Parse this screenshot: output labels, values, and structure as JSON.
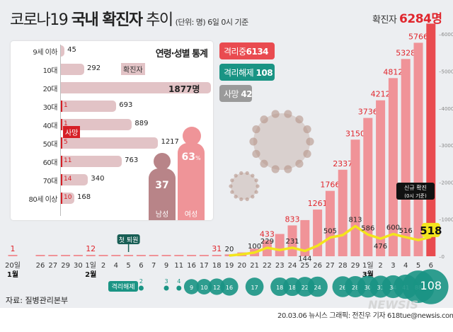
{
  "header": {
    "title_prefix": "코로나19",
    "title_main": "국내 확진자",
    "title_suffix": "추이",
    "unit_note": "(단위: 명) 6일 0시 기준",
    "total_label": "확진자",
    "total_value": "6284명"
  },
  "status": {
    "isolated": {
      "label": "격리중",
      "value": "6134",
      "color": "#e94b50"
    },
    "released": {
      "label": "격리해제",
      "value": "108",
      "color": "#1a9484"
    },
    "deaths": {
      "label": "사망",
      "value": "42",
      "color": "#9a9a9a"
    }
  },
  "age_panel": {
    "title": "연령·성별 통계",
    "confirmed_tag": "확진자",
    "death_tag": "사망",
    "rows": [
      {
        "label": "9세 이하",
        "confirmed": 45,
        "confirmed_label": "45",
        "deaths": null
      },
      {
        "label": "10대",
        "confirmed": 292,
        "confirmed_label": "292",
        "deaths": null
      },
      {
        "label": "20대",
        "confirmed": 1877,
        "confirmed_label": "1877명",
        "deaths": null
      },
      {
        "label": "30대",
        "confirmed": 693,
        "confirmed_label": "693",
        "deaths": "1"
      },
      {
        "label": "40대",
        "confirmed": 889,
        "confirmed_label": "889",
        "deaths": "1"
      },
      {
        "label": "50대",
        "confirmed": 1217,
        "confirmed_label": "1217",
        "deaths": "5"
      },
      {
        "label": "60대",
        "confirmed": 763,
        "confirmed_label": "763",
        "deaths": "11"
      },
      {
        "label": "70대",
        "confirmed": 340,
        "confirmed_label": "340",
        "deaths": "14"
      },
      {
        "label": "80세 이상",
        "confirmed": 168,
        "confirmed_label": "168",
        "deaths": "10"
      }
    ],
    "gender": {
      "male": {
        "label": "남성",
        "value": "37",
        "color": "#b88488"
      },
      "female": {
        "label": "여성",
        "value": "63",
        "unit": "%",
        "color": "#ef9498"
      }
    }
  },
  "chart_data": {
    "type": "bar",
    "categories": [
      "20일",
      "26",
      "27",
      "29",
      "30",
      "1일",
      "2",
      "4",
      "5",
      "6",
      "7",
      "9",
      "11",
      "16",
      "17",
      "18",
      "19",
      "20",
      "21",
      "22",
      "23",
      "24",
      "25",
      "26",
      "27",
      "28",
      "29",
      "1일",
      "2",
      "3",
      "4",
      "5",
      "6"
    ],
    "month_labels": [
      {
        "index": 0,
        "label": "1월"
      },
      {
        "index": 5,
        "label": "2월"
      },
      {
        "index": 27,
        "label": "3월"
      }
    ],
    "series": [
      {
        "kind": "bar",
        "color": "#f09398",
        "highlight_color": "#e94b4f",
        "values": [
          1,
          3,
          4,
          4,
          6,
          12,
          15,
          16,
          19,
          23,
          24,
          27,
          28,
          29,
          30,
          31,
          51,
          104,
          204,
          433,
          602,
          833,
          977,
          1261,
          1766,
          2337,
          3150,
          3736,
          4212,
          4812,
          5328,
          5766,
          6284
        ],
        "labels": [
          "1",
          null,
          null,
          null,
          null,
          "12",
          null,
          null,
          null,
          null,
          null,
          null,
          null,
          null,
          null,
          "31",
          null,
          null,
          null,
          "433",
          null,
          "833",
          null,
          "1261",
          "1766",
          "2337",
          "3150",
          "3736",
          "4212",
          "4812",
          "5328",
          "5766",
          null
        ]
      },
      {
        "kind": "line",
        "color": "#f3e41c",
        "values": [
          null,
          null,
          null,
          null,
          null,
          null,
          null,
          null,
          null,
          null,
          null,
          null,
          null,
          null,
          null,
          null,
          20,
          53,
          100,
          229,
          169,
          231,
          144,
          284,
          505,
          571,
          813,
          586,
          476,
          600,
          516,
          438,
          518
        ],
        "labels": [
          null,
          null,
          null,
          null,
          null,
          null,
          null,
          null,
          null,
          null,
          null,
          null,
          null,
          null,
          null,
          null,
          "20",
          null,
          "100",
          "229",
          null,
          "231",
          "144",
          null,
          "505",
          null,
          "813",
          "586",
          "476",
          "600",
          "516",
          null,
          "518"
        ]
      }
    ],
    "released": {
      "label": "격리해제",
      "color": "#1a9484",
      "values": [
        null,
        null,
        null,
        null,
        null,
        null,
        null,
        null,
        null,
        2,
        null,
        3,
        4,
        9,
        10,
        12,
        16,
        null,
        17,
        null,
        18,
        18,
        22,
        24,
        null,
        26,
        28,
        30,
        31,
        34,
        41,
        88,
        108
      ]
    },
    "annotations": {
      "first_release": {
        "index": 8,
        "label": "첫 퇴원"
      },
      "new_cases_callout": {
        "line1": "신규 확진",
        "line2": "(0시 기준)"
      }
    },
    "yaxis": {
      "ticks": [
        0,
        1000,
        2000,
        3000,
        4000,
        5000,
        6000
      ],
      "range": [
        0,
        6284
      ],
      "position": "right"
    },
    "grid": false
  },
  "footer": {
    "source": "자료: 질병관리본부",
    "credit": "20.03.06 뉴시스 그래픽: 전진우 기자 618tue@newsis.com",
    "watermark": "NEWSIS"
  }
}
